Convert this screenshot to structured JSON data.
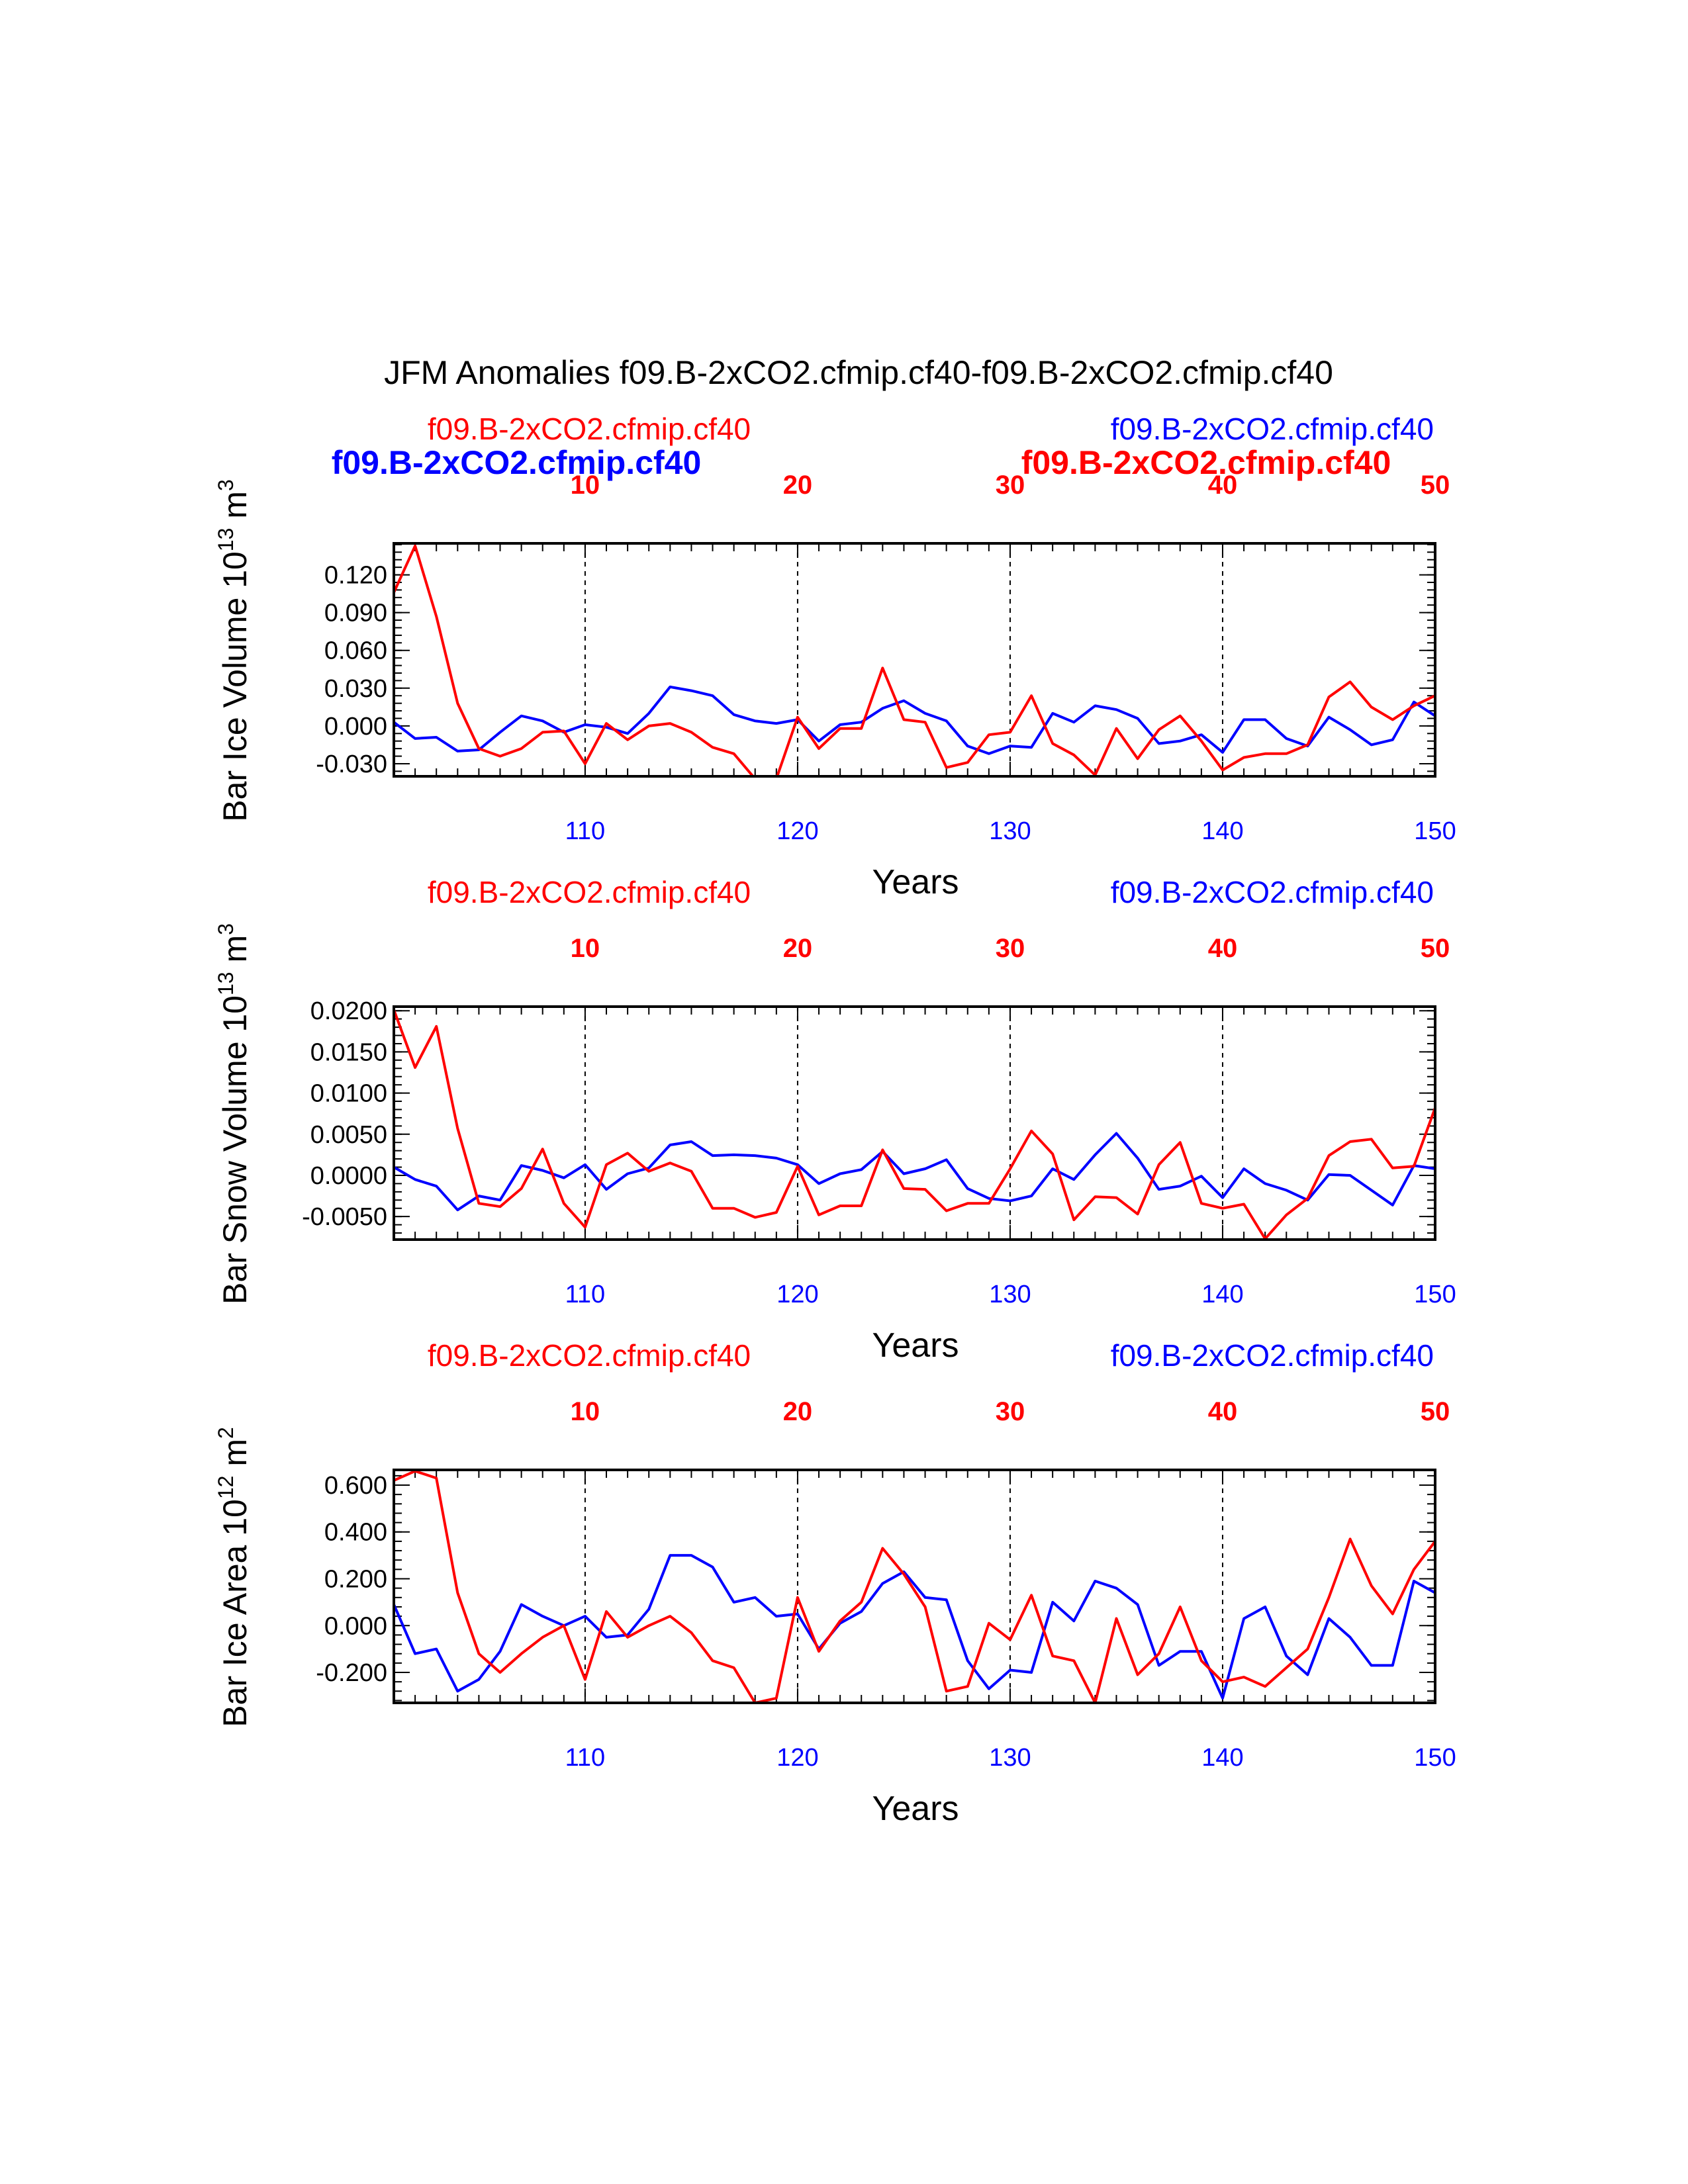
{
  "title": "JFM Anomalies f09.B-2xCO2.cfmip.cf40-f09.B-2xCO2.cfmip.cf40",
  "colors": {
    "red": "#ff0000",
    "blue": "#0000ff",
    "axis": "#000000"
  },
  "overlay_labels": {
    "blue": "f09.B-2xCO2.cfmip.cf40",
    "red": "f09.B-2xCO2.cfmip.cf40"
  },
  "chart_data": [
    {
      "type": "line",
      "ylabel": "Bar Ice Volume",
      "yunit_exp": "13",
      "yunit_sym": "m",
      "yunit_pow": "3",
      "xlabel": "Years",
      "top_left_label": "f09.B-2xCO2.cfmip.cf40",
      "top_right_label": "f09.B-2xCO2.cfmip.cf40",
      "xlim": [
        101,
        150
      ],
      "ylim": [
        -0.04,
        0.145
      ],
      "yticks": [
        "0.120",
        "0.090",
        "0.060",
        "0.030",
        "0.000",
        "-0.030"
      ],
      "ytick_values": [
        0.12,
        0.09,
        0.06,
        0.03,
        0.0,
        -0.03
      ],
      "bottom_ticks": [
        "110",
        "120",
        "130",
        "140",
        "150"
      ],
      "bottom_tick_values": [
        110,
        120,
        130,
        140,
        150
      ],
      "top_ticks": [
        "10",
        "20",
        "30",
        "40",
        "50"
      ],
      "gridlines_at": [
        110,
        120,
        130,
        140
      ],
      "series": [
        {
          "name": "f09.B-2xCO2.cfmip.cf40",
          "color": "blue",
          "x_start": 101,
          "values": [
            0.003,
            -0.01,
            -0.009,
            -0.02,
            -0.019,
            -0.005,
            0.008,
            0.004,
            -0.005,
            0.001,
            -0.001,
            -0.006,
            0.01,
            0.031,
            0.028,
            0.024,
            0.009,
            0.004,
            0.002,
            0.005,
            -0.012,
            0.001,
            0.003,
            0.014,
            0.02,
            0.01,
            0.004,
            -0.016,
            -0.022,
            -0.016,
            -0.017,
            0.01,
            0.003,
            0.016,
            0.013,
            0.006,
            -0.014,
            -0.012,
            -0.007,
            -0.021,
            0.005,
            0.005,
            -0.01,
            -0.016,
            0.007,
            -0.003,
            -0.015,
            -0.011,
            0.019,
            0.008
          ]
        },
        {
          "name": "f09.B-2xCO2.cfmip.cf40",
          "color": "red",
          "x_start": 101,
          "values": [
            0.106,
            0.143,
            0.087,
            0.018,
            -0.018,
            -0.024,
            -0.018,
            -0.005,
            -0.004,
            -0.03,
            0.002,
            -0.011,
            0.0,
            0.002,
            -0.005,
            -0.017,
            -0.022,
            -0.042,
            -0.042,
            0.007,
            -0.018,
            -0.002,
            -0.002,
            0.046,
            0.005,
            0.003,
            -0.033,
            -0.029,
            -0.007,
            -0.005,
            0.024,
            -0.014,
            -0.023,
            -0.039,
            -0.002,
            -0.026,
            -0.003,
            0.008,
            -0.012,
            -0.035,
            -0.025,
            -0.022,
            -0.022,
            -0.015,
            0.023,
            0.035,
            0.015,
            0.005,
            0.016,
            0.024
          ]
        }
      ]
    },
    {
      "type": "line",
      "ylabel": "Bar Snow Volume",
      "yunit_exp": "13",
      "yunit_sym": "m",
      "yunit_pow": "3",
      "xlabel": "Years",
      "top_left_label": "f09.B-2xCO2.cfmip.cf40",
      "top_right_label": "f09.B-2xCO2.cfmip.cf40",
      "xlim": [
        101,
        150
      ],
      "ylim": [
        -0.0078,
        0.0205
      ],
      "yticks": [
        "0.0200",
        "0.0150",
        "0.0100",
        "0.0050",
        "0.0000",
        "-0.0050"
      ],
      "ytick_values": [
        0.02,
        0.015,
        0.01,
        0.005,
        0.0,
        -0.005
      ],
      "bottom_ticks": [
        "110",
        "120",
        "130",
        "140",
        "150"
      ],
      "bottom_tick_values": [
        110,
        120,
        130,
        140,
        150
      ],
      "top_ticks": [
        "10",
        "20",
        "30",
        "40",
        "50"
      ],
      "gridlines_at": [
        110,
        120,
        130,
        140
      ],
      "series": [
        {
          "name": "f09.B-2xCO2.cfmip.cf40",
          "color": "blue",
          "x_start": 101,
          "values": [
            0.001,
            -0.0005,
            -0.0013,
            -0.0042,
            -0.0025,
            -0.003,
            0.0012,
            0.0006,
            -0.0003,
            0.0013,
            -0.0017,
            0.0002,
            0.0009,
            0.0037,
            0.0041,
            0.0024,
            0.0025,
            0.0024,
            0.0021,
            0.0013,
            -0.001,
            0.0002,
            0.0007,
            0.0029,
            0.0002,
            0.0008,
            0.0019,
            -0.0016,
            -0.0028,
            -0.0031,
            -0.0025,
            0.0008,
            -0.0005,
            0.0025,
            0.0051,
            0.0021,
            -0.0017,
            -0.0013,
            -0.0001,
            -0.0027,
            0.0008,
            -0.001,
            -0.0018,
            -0.003,
            0.0001,
            0.0,
            -0.0018,
            -0.0036,
            0.0012,
            0.0008
          ]
        },
        {
          "name": "f09.B-2xCO2.cfmip.cf40",
          "color": "red",
          "x_start": 101,
          "values": [
            0.0201,
            0.0131,
            0.0181,
            0.0057,
            -0.0034,
            -0.0038,
            -0.0016,
            0.0032,
            -0.0034,
            -0.0063,
            0.0013,
            0.0027,
            0.0005,
            0.0015,
            0.0005,
            -0.004,
            -0.004,
            -0.0051,
            -0.0045,
            0.0011,
            -0.0048,
            -0.0037,
            -0.0037,
            0.0031,
            -0.0016,
            -0.0017,
            -0.0043,
            -0.0034,
            -0.0034,
            0.0008,
            0.0054,
            0.0026,
            -0.0054,
            -0.0026,
            -0.0027,
            -0.0047,
            0.0013,
            0.004,
            -0.0034,
            -0.004,
            -0.0035,
            -0.0077,
            -0.0048,
            -0.0028,
            0.0024,
            0.0041,
            0.0044,
            0.0009,
            0.0011,
            0.0082
          ]
        }
      ]
    },
    {
      "type": "line",
      "ylabel": "Bar Ice Area",
      "yunit_exp": "12",
      "yunit_sym": "m",
      "yunit_pow": "2",
      "xlabel": "Years",
      "top_left_label": "f09.B-2xCO2.cfmip.cf40",
      "top_right_label": "f09.B-2xCO2.cfmip.cf40",
      "xlim": [
        101,
        150
      ],
      "ylim": [
        -0.33,
        0.665
      ],
      "yticks": [
        "0.600",
        "0.400",
        "0.200",
        "0.000",
        "-0.200"
      ],
      "ytick_values": [
        0.6,
        0.4,
        0.2,
        0.0,
        -0.2
      ],
      "bottom_ticks": [
        "110",
        "120",
        "130",
        "140",
        "150"
      ],
      "bottom_tick_values": [
        110,
        120,
        130,
        140,
        150
      ],
      "top_ticks": [
        "10",
        "20",
        "30",
        "40",
        "50"
      ],
      "gridlines_at": [
        110,
        120,
        130,
        140
      ],
      "series": [
        {
          "name": "f09.B-2xCO2.cfmip.cf40",
          "color": "blue",
          "x_start": 101,
          "values": [
            0.09,
            -0.12,
            -0.1,
            -0.28,
            -0.23,
            -0.11,
            0.09,
            0.04,
            0.0,
            0.04,
            -0.05,
            -0.04,
            0.07,
            0.3,
            0.3,
            0.25,
            0.1,
            0.12,
            0.04,
            0.05,
            -0.1,
            0.01,
            0.06,
            0.18,
            0.23,
            0.12,
            0.11,
            -0.15,
            -0.27,
            -0.19,
            -0.2,
            0.1,
            0.02,
            0.19,
            0.16,
            0.09,
            -0.17,
            -0.11,
            -0.11,
            -0.31,
            0.03,
            0.08,
            -0.13,
            -0.21,
            0.03,
            -0.05,
            -0.17,
            -0.17,
            0.19,
            0.14
          ]
        },
        {
          "name": "f09.B-2xCO2.cfmip.cf40",
          "color": "red",
          "x_start": 101,
          "values": [
            0.62,
            0.66,
            0.63,
            0.14,
            -0.12,
            -0.2,
            -0.12,
            -0.05,
            0.0,
            -0.23,
            0.06,
            -0.05,
            0.0,
            0.04,
            -0.03,
            -0.15,
            -0.18,
            -0.33,
            -0.31,
            0.12,
            -0.11,
            0.02,
            0.1,
            0.33,
            0.22,
            0.08,
            -0.28,
            -0.26,
            0.01,
            -0.06,
            0.13,
            -0.13,
            -0.15,
            -0.33,
            0.03,
            -0.21,
            -0.12,
            0.08,
            -0.15,
            -0.24,
            -0.22,
            -0.26,
            -0.18,
            -0.1,
            0.12,
            0.37,
            0.17,
            0.05,
            0.24,
            0.36
          ]
        }
      ]
    }
  ]
}
